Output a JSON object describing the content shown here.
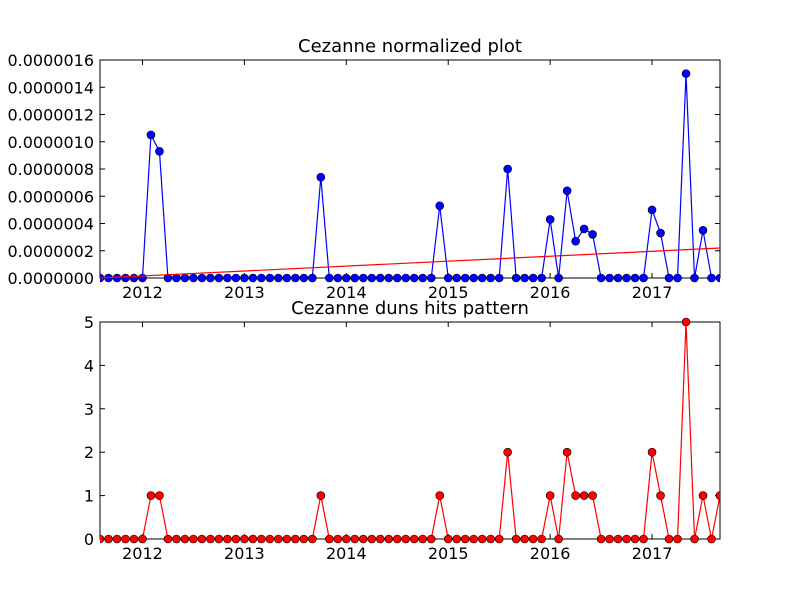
{
  "chart_data": [
    {
      "type": "line",
      "title": "Cezanne normalized plot",
      "xlabel": "",
      "ylabel": "",
      "x_tick_labels": [
        "2012",
        "2013",
        "2014",
        "2015",
        "2016",
        "2017"
      ],
      "y_tick_labels": [
        "0.0000000",
        "0.0000002",
        "0.0000004",
        "0.0000006",
        "0.0000008",
        "0.0000010",
        "0.0000012",
        "0.0000014",
        "0.0000016"
      ],
      "xlim": [
        "2011-08",
        "2017-09"
      ],
      "ylim": [
        0,
        1.6e-06
      ],
      "grid": false,
      "series": [
        {
          "color": "#0000ff",
          "marker": "circle",
          "x": [
            "2011-08",
            "2011-09",
            "2011-10",
            "2011-11",
            "2011-12",
            "2012-01",
            "2012-02",
            "2012-03",
            "2012-04",
            "2012-05",
            "2012-06",
            "2012-07",
            "2012-08",
            "2012-09",
            "2012-10",
            "2012-11",
            "2012-12",
            "2013-01",
            "2013-02",
            "2013-03",
            "2013-04",
            "2013-05",
            "2013-06",
            "2013-07",
            "2013-08",
            "2013-09",
            "2013-10",
            "2013-11",
            "2013-12",
            "2014-01",
            "2014-02",
            "2014-03",
            "2014-04",
            "2014-05",
            "2014-06",
            "2014-07",
            "2014-08",
            "2014-09",
            "2014-10",
            "2014-11",
            "2014-12",
            "2015-01",
            "2015-02",
            "2015-03",
            "2015-04",
            "2015-05",
            "2015-06",
            "2015-07",
            "2015-08",
            "2015-09",
            "2015-10",
            "2015-11",
            "2015-12",
            "2016-01",
            "2016-02",
            "2016-03",
            "2016-04",
            "2016-05",
            "2016-06",
            "2016-07",
            "2016-08",
            "2016-09",
            "2016-10",
            "2016-11",
            "2016-12",
            "2017-01",
            "2017-02",
            "2017-03",
            "2017-04",
            "2017-05",
            "2017-06",
            "2017-07",
            "2017-08",
            "2017-09"
          ],
          "y": [
            0,
            0,
            0,
            0,
            0,
            0,
            1.05e-06,
            9.3e-07,
            0,
            0,
            0,
            0,
            0,
            0,
            0,
            0,
            0,
            0,
            0,
            0,
            0,
            0,
            0,
            0,
            0,
            0,
            7.4e-07,
            0,
            0,
            0,
            0,
            0,
            0,
            0,
            0,
            0,
            0,
            0,
            0,
            0,
            5.3e-07,
            0,
            0,
            0,
            0,
            0,
            0,
            0,
            8e-07,
            0,
            0,
            0,
            0,
            4.3e-07,
            0,
            6.4e-07,
            2.7e-07,
            3.6e-07,
            3.2e-07,
            0,
            0,
            0,
            0,
            0,
            0,
            5e-07,
            3.3e-07,
            0,
            0,
            1.5e-06,
            0,
            3.5e-07,
            0,
            0
          ]
        },
        {
          "color": "#ff0000",
          "marker": "none",
          "x": [
            "2011-08",
            "2017-09"
          ],
          "y": [
            0,
            2.2e-07
          ]
        }
      ]
    },
    {
      "type": "line",
      "title": "Cezanne duns hits pattern",
      "xlabel": "",
      "ylabel": "",
      "x_tick_labels": [
        "2012",
        "2013",
        "2014",
        "2015",
        "2016",
        "2017"
      ],
      "y_tick_labels": [
        "0",
        "1",
        "2",
        "3",
        "4",
        "5"
      ],
      "xlim": [
        "2011-08",
        "2017-09"
      ],
      "ylim": [
        0,
        5
      ],
      "grid": false,
      "series": [
        {
          "color": "#ff0000",
          "marker": "circle",
          "x": [
            "2011-08",
            "2011-09",
            "2011-10",
            "2011-11",
            "2011-12",
            "2012-01",
            "2012-02",
            "2012-03",
            "2012-04",
            "2012-05",
            "2012-06",
            "2012-07",
            "2012-08",
            "2012-09",
            "2012-10",
            "2012-11",
            "2012-12",
            "2013-01",
            "2013-02",
            "2013-03",
            "2013-04",
            "2013-05",
            "2013-06",
            "2013-07",
            "2013-08",
            "2013-09",
            "2013-10",
            "2013-11",
            "2013-12",
            "2014-01",
            "2014-02",
            "2014-03",
            "2014-04",
            "2014-05",
            "2014-06",
            "2014-07",
            "2014-08",
            "2014-09",
            "2014-10",
            "2014-11",
            "2014-12",
            "2015-01",
            "2015-02",
            "2015-03",
            "2015-04",
            "2015-05",
            "2015-06",
            "2015-07",
            "2015-08",
            "2015-09",
            "2015-10",
            "2015-11",
            "2015-12",
            "2016-01",
            "2016-02",
            "2016-03",
            "2016-04",
            "2016-05",
            "2016-06",
            "2016-07",
            "2016-08",
            "2016-09",
            "2016-10",
            "2016-11",
            "2016-12",
            "2017-01",
            "2017-02",
            "2017-03",
            "2017-04",
            "2017-05",
            "2017-06",
            "2017-07",
            "2017-08",
            "2017-09"
          ],
          "y": [
            0,
            0,
            0,
            0,
            0,
            0,
            1,
            1,
            0,
            0,
            0,
            0,
            0,
            0,
            0,
            0,
            0,
            0,
            0,
            0,
            0,
            0,
            0,
            0,
            0,
            0,
            1,
            0,
            0,
            0,
            0,
            0,
            0,
            0,
            0,
            0,
            0,
            0,
            0,
            0,
            1,
            0,
            0,
            0,
            0,
            0,
            0,
            0,
            2,
            0,
            0,
            0,
            0,
            1,
            0,
            2,
            1,
            1,
            1,
            0,
            0,
            0,
            0,
            0,
            0,
            2,
            1,
            0,
            0,
            5,
            0,
            1,
            0,
            1
          ]
        }
      ]
    }
  ]
}
